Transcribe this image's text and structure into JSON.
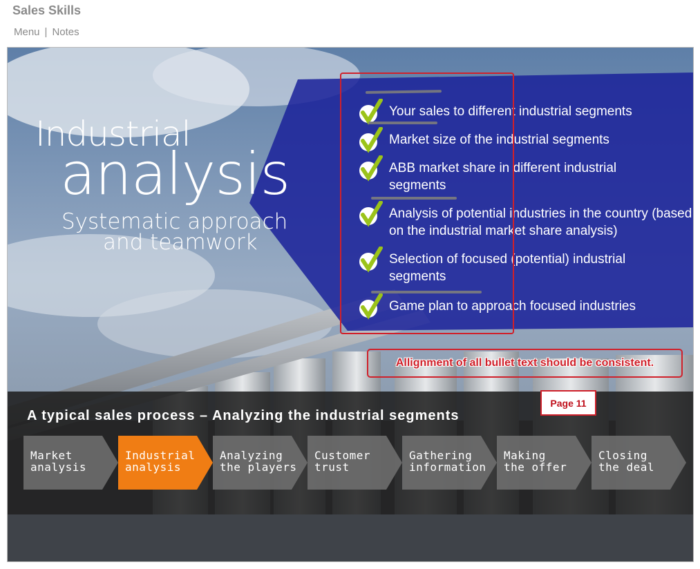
{
  "app": {
    "title": "Sales Skills"
  },
  "nav": {
    "menu_label": "Menu",
    "separator": "|",
    "notes_label": "Notes"
  },
  "slide": {
    "headline_line1": "Industrial",
    "headline_line2": "analysis",
    "subtitle_line1": "Systematic approach",
    "subtitle_line2": "and teamwork",
    "bullets": [
      "Your sales to different industrial segments",
      "Market size of the industrial segments",
      "ABB market share in different industrial segments",
      "Analysis of potential industries in the country (based on the industrial market share analysis)",
      "Selection of focused (potential) industrial segments",
      "Game plan to approach focused industries"
    ],
    "process_title": "A typical sales process – Analyzing the industrial segments",
    "steps": [
      {
        "line1": "Market",
        "line2": "analysis",
        "active": false
      },
      {
        "line1": "Industrial",
        "line2": "analysis",
        "active": true
      },
      {
        "line1": "Analyzing",
        "line2": "the players",
        "active": false
      },
      {
        "line1": "Customer",
        "line2": "trust",
        "active": false
      },
      {
        "line1": "Gathering",
        "line2": "information",
        "active": false
      },
      {
        "line1": "Making",
        "line2": "the offer",
        "active": false
      },
      {
        "line1": "Closing",
        "line2": "the deal",
        "active": false
      }
    ]
  },
  "review": {
    "annotation": "Allignment of all bullet text should be consistent.",
    "page_label": "Page 11"
  },
  "colors": {
    "accent_orange": "#f07d14",
    "panel_blue": "#2a2f9a",
    "step_gray": "#6e6e6e",
    "review_red": "#d0202a",
    "check_green": "#9bc31a"
  }
}
